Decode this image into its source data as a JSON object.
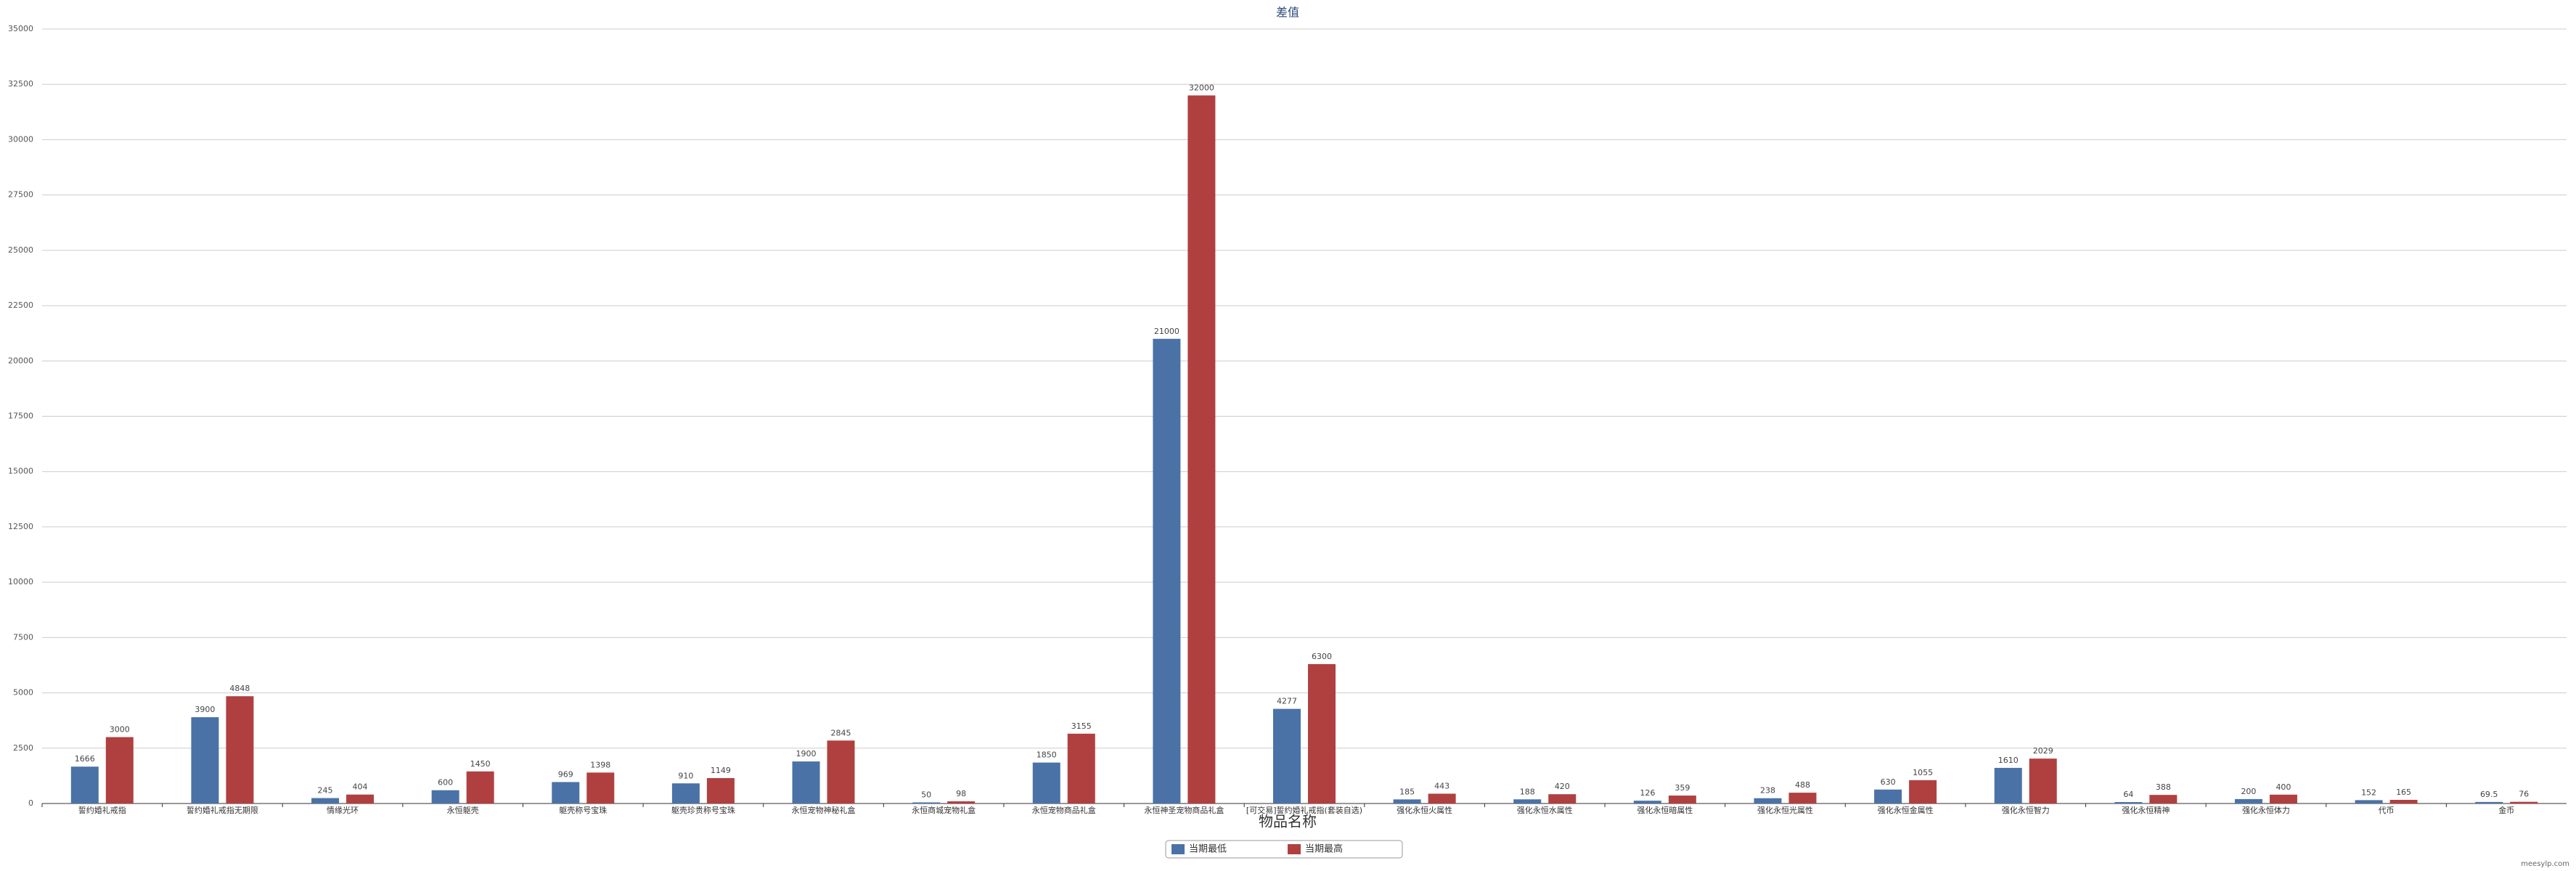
{
  "chart_data": {
    "type": "bar",
    "title": "差值",
    "x_label": "物品名称",
    "categories": [
      "誓约婚礼戒指",
      "誓约婚礼戒指无期限",
      "情缘光环",
      "永恒躯壳",
      "躯壳称号宝珠",
      "躯壳珍贵称号宝珠",
      "永恒宠物神秘礼盒",
      "永恒商城宠物礼盒",
      "永恒宠物商品礼盒",
      "永恒神圣宠物商品礼盒",
      "[可交易]誓约婚礼戒指(套装自选)",
      "强化永恒火属性",
      "强化永恒水属性",
      "强化永恒暗属性",
      "强化永恒光属性",
      "强化永恒金属性",
      "强化永恒智力",
      "强化永恒精神",
      "强化永恒体力",
      "代币",
      "金币"
    ],
    "series": [
      {
        "name": "当期最低",
        "color": "#4a72a6",
        "values": [
          1666,
          3900,
          245,
          600,
          969,
          910,
          1900,
          50,
          1850,
          21000,
          4277,
          185,
          188,
          126,
          238,
          630,
          1610,
          64,
          200,
          152,
          69.5
        ]
      },
      {
        "name": "当期最高",
        "color": "#b04040",
        "values": [
          3000,
          4848,
          404,
          1450,
          1398,
          1149,
          2845,
          98,
          3155,
          32000,
          6300,
          443,
          420,
          359,
          488,
          1055,
          2029,
          388,
          400,
          165,
          76
        ]
      }
    ],
    "ylim": [
      0,
      35000
    ],
    "yticks": [
      0,
      2500,
      5000,
      7500,
      10000,
      12500,
      15000,
      17500,
      20000,
      22500,
      25000,
      27500,
      30000,
      32500,
      35000
    ],
    "grid": true,
    "legend": "bottom",
    "watermark": "meesylp.com"
  }
}
